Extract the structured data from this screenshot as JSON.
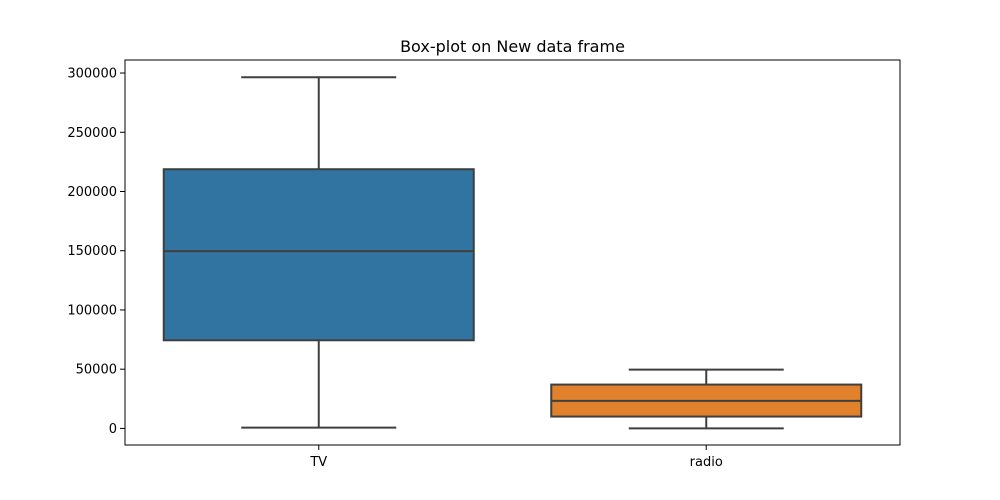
{
  "chart_data": {
    "type": "box",
    "title": "Box-plot on New data frame",
    "xlabel": "",
    "ylabel": "",
    "categories": [
      "TV",
      "radio"
    ],
    "series": [
      {
        "category": "TV",
        "min": 700,
        "q1": 74400,
        "median": 149700,
        "q3": 218800,
        "max": 296400,
        "color": "#3274a1"
      },
      {
        "category": "radio",
        "min": 0,
        "q1": 10000,
        "median": 23300,
        "q3": 37000,
        "max": 49600,
        "color": "#e1812c"
      }
    ],
    "ylim": [
      -14000,
      311000
    ],
    "yticks": [
      0,
      50000,
      100000,
      150000,
      200000,
      250000,
      300000
    ],
    "ytick_labels": [
      "0",
      "50000",
      "100000",
      "150000",
      "200000",
      "250000",
      "300000"
    ],
    "line_color": "#3f3f3f",
    "grid": false,
    "legend": "none"
  }
}
